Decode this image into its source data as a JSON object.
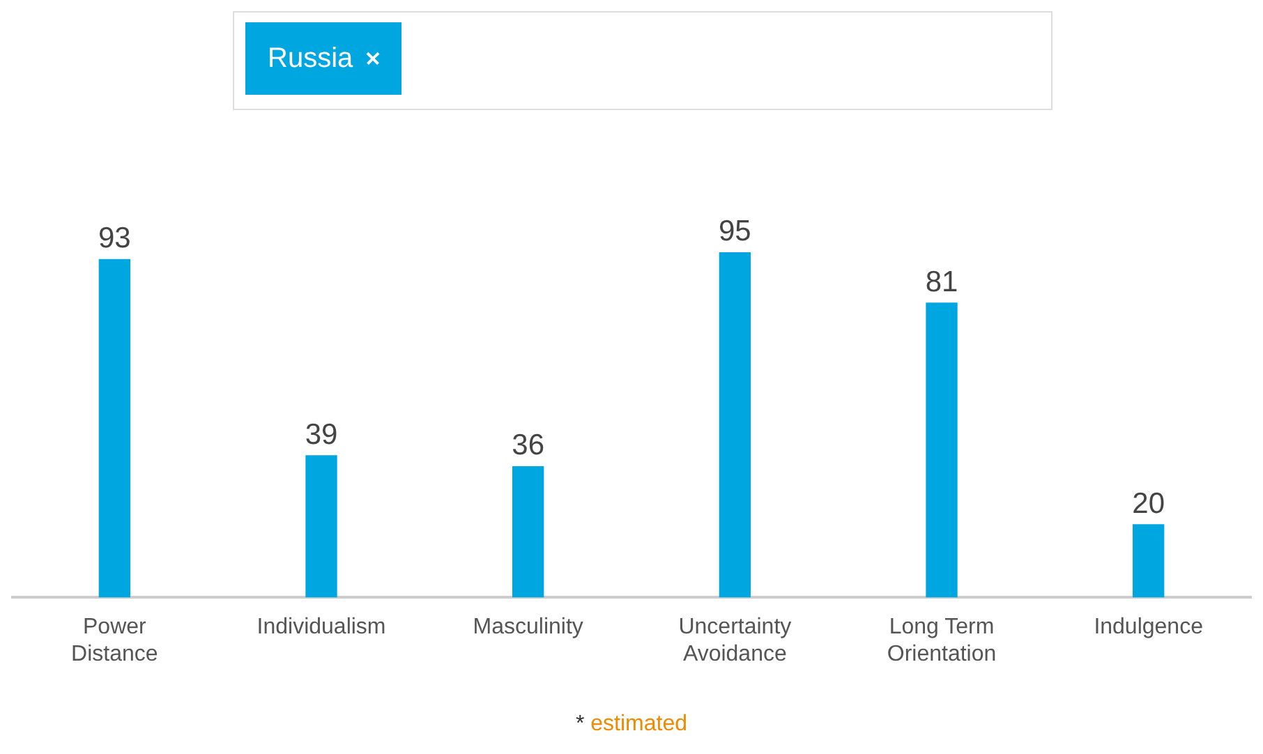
{
  "chart_data": {
    "type": "bar",
    "categories": [
      "Power Distance",
      "Individualism",
      "Masculinity",
      "Uncertainty Avoidance",
      "Long Term Orientation",
      "Indulgence"
    ],
    "series": [
      {
        "name": "Russia",
        "color": "#00a6e0",
        "values": [
          93,
          39,
          36,
          95,
          81,
          20
        ]
      }
    ],
    "data_labels": true,
    "grid": false,
    "legend": "top",
    "tick_labels": "x",
    "annotations": [
      "* estimated"
    ]
  }
}
